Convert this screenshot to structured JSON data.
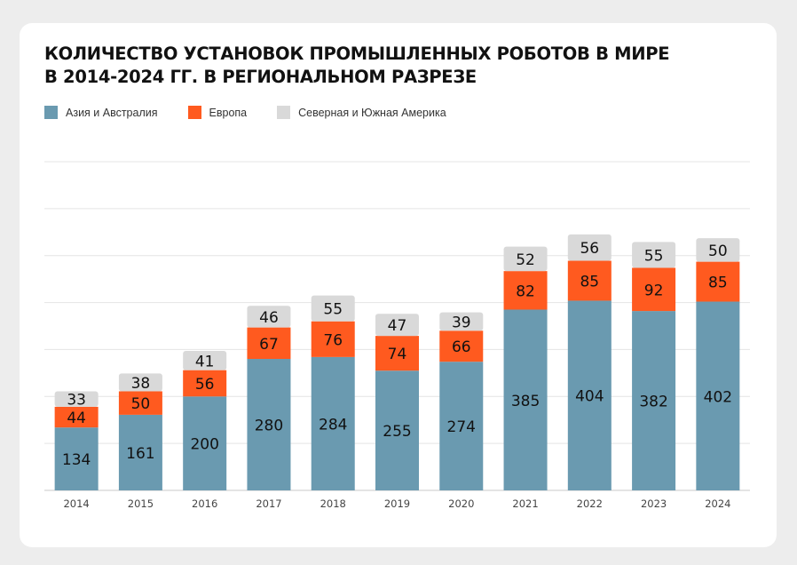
{
  "title": {
    "line1": "КОЛИЧЕСТВО УСТАНОВОК ПРОМЫШЛЕННЫХ РОБОТОВ В МИРЕ",
    "line2": "В 2014-2024 ГГ. В РЕГИОНАЛЬНОМ РАЗРЕЗЕ"
  },
  "legend": [
    {
      "label": "Азия и Австралия",
      "color": "#6a9ab0"
    },
    {
      "label": "Европа",
      "color": "#ff5a1f"
    },
    {
      "label": "Северная и Южная Америка",
      "color": "#d9d9d9"
    }
  ],
  "chart_data": {
    "type": "bar",
    "stacked": true,
    "categories": [
      "2014",
      "2015",
      "2016",
      "2017",
      "2018",
      "2019",
      "2020",
      "2021",
      "2022",
      "2023",
      "2024"
    ],
    "series": [
      {
        "name": "Азия и Австралия",
        "color": "#6a9ab0",
        "values": [
          134,
          161,
          200,
          280,
          284,
          255,
          274,
          385,
          404,
          382,
          402
        ]
      },
      {
        "name": "Европа",
        "color": "#ff5a1f",
        "values": [
          44,
          50,
          56,
          67,
          76,
          74,
          66,
          82,
          85,
          92,
          85
        ]
      },
      {
        "name": "Северная и Южная Америка",
        "color": "#d9d9d9",
        "values": [
          33,
          38,
          41,
          46,
          55,
          47,
          39,
          52,
          56,
          55,
          50
        ]
      }
    ],
    "ylim": [
      0,
      700
    ],
    "grid": true,
    "legend_position": "top-left",
    "data_labels": true
  }
}
